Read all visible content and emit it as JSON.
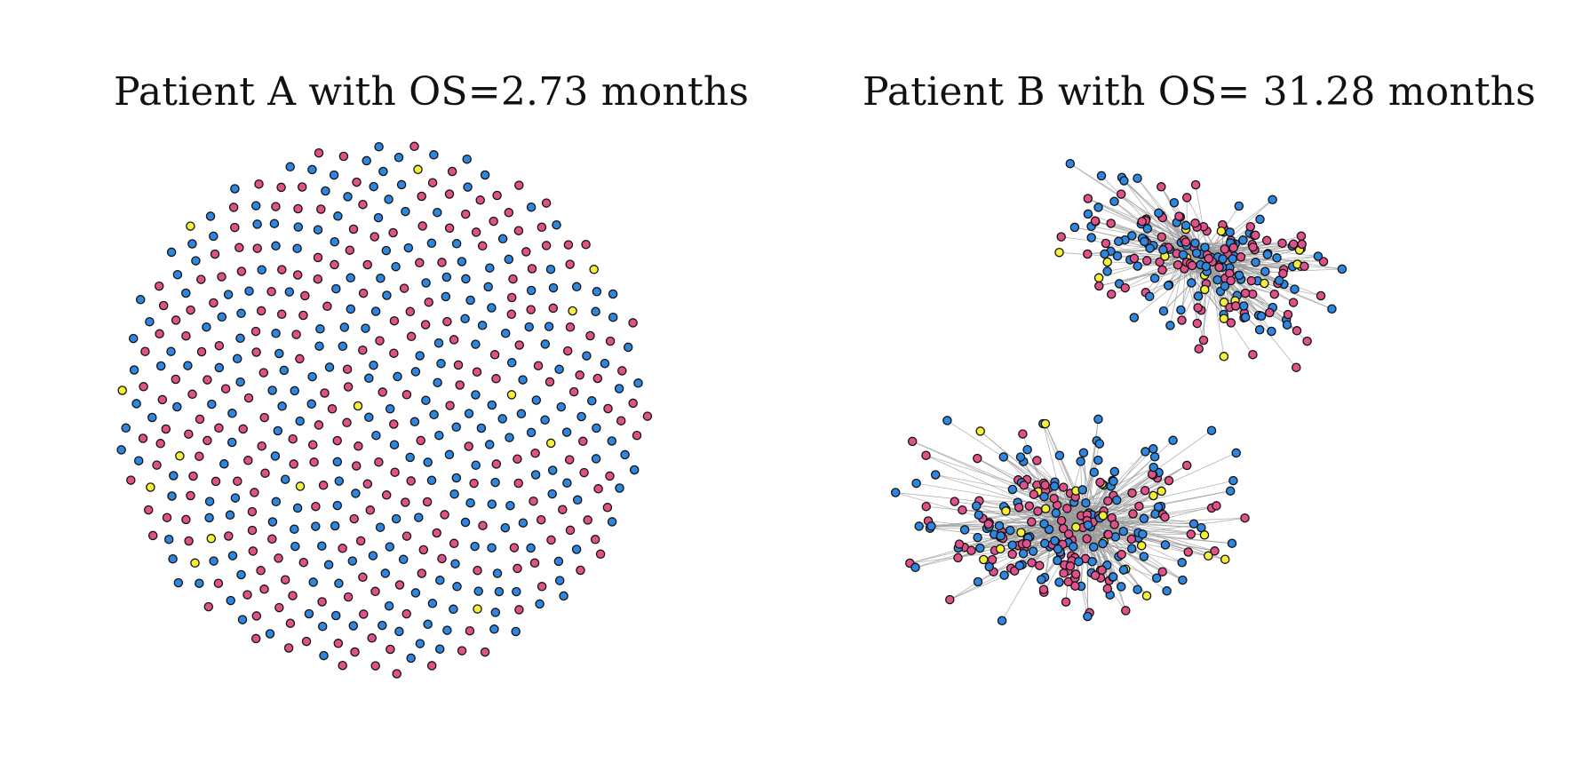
{
  "panels": [
    {
      "id": "patient-a",
      "title": "Patient A with OS=2.73 months",
      "layout": "dispersed-circle",
      "edges": "none",
      "node_counts": {
        "blue": 260,
        "pink": 250,
        "yellow": 14
      }
    },
    {
      "id": "patient-b",
      "title": "Patient B with OS= 31.28 months",
      "layout": "two-clusters",
      "edges": "dense",
      "node_counts": {
        "blue": 230,
        "pink": 220,
        "yellow": 40
      }
    }
  ],
  "colors": {
    "blue": "#2e86de",
    "pink": "#e0508a",
    "yellow": "#f5ef3a",
    "node_stroke": "#111111",
    "edge": "#9a9a9a"
  }
}
